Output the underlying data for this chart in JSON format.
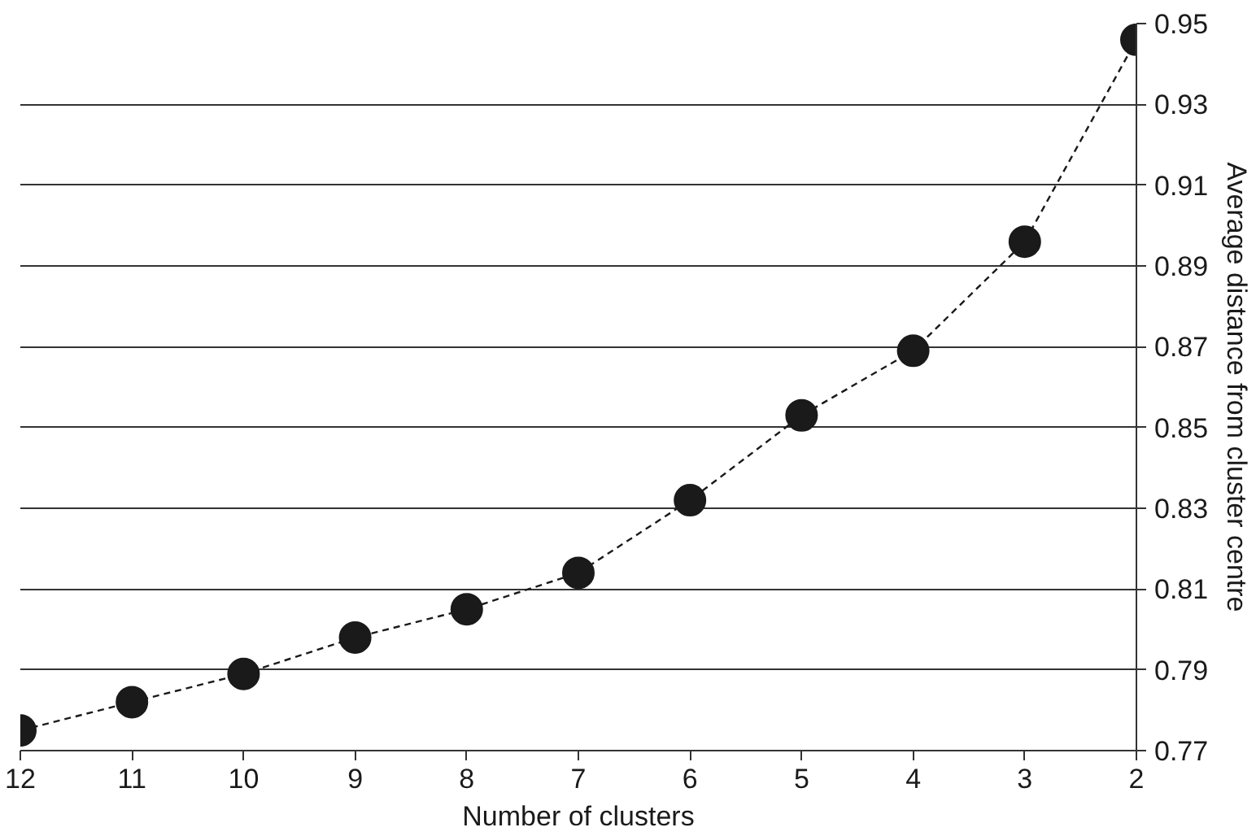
{
  "chart_data": {
    "type": "line",
    "xlabel": "Number of clusters",
    "ylabel": "Average distance from cluster centre",
    "x": [
      12,
      11,
      10,
      9,
      8,
      7,
      6,
      5,
      4,
      3,
      2
    ],
    "series": [
      {
        "color": "#1a1a1a",
        "values": [
          0.775,
          0.782,
          0.789,
          0.798,
          0.805,
          0.814,
          0.832,
          0.853,
          0.869,
          0.896,
          0.946
        ]
      }
    ],
    "xlim": [
      12,
      2
    ],
    "xticks": [
      12,
      11,
      10,
      9,
      8,
      7,
      6,
      5,
      4,
      3,
      2
    ],
    "ylim": [
      0.77,
      0.95
    ],
    "yticks": [
      0.77,
      0.79,
      0.81,
      0.83,
      0.85,
      0.87,
      0.89,
      0.91,
      0.93,
      0.95
    ],
    "grid": "y",
    "marker": "circle",
    "line_style": "dashed"
  }
}
